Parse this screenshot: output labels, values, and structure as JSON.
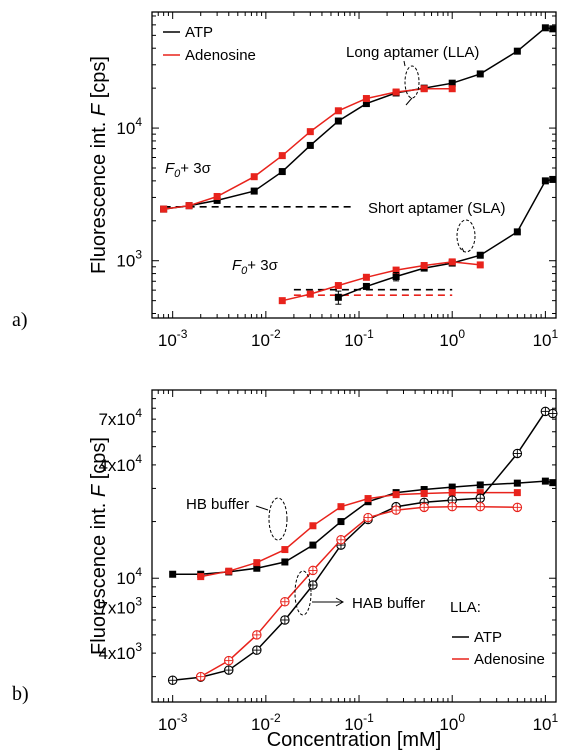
{
  "chart_data": [
    {
      "panel": "a)",
      "type": "line",
      "xscale": "log",
      "yscale": "log",
      "xlim": [
        0.0006,
        13
      ],
      "ylim": [
        370,
        75000
      ],
      "ylabel_prefix": "Fluorescence int. ",
      "ylabel_var": "F",
      "ylabel_unit": " [cps]",
      "xticks": [
        {
          "v": 0.001,
          "base": "10",
          "exp": "-3"
        },
        {
          "v": 0.01,
          "base": "10",
          "exp": "-2"
        },
        {
          "v": 0.1,
          "base": "10",
          "exp": "-1"
        },
        {
          "v": 1,
          "base": "10",
          "exp": "0"
        },
        {
          "v": 10,
          "base": "10",
          "exp": "1"
        }
      ],
      "yticks": [
        {
          "v": 1000,
          "base": "10",
          "exp": "3"
        },
        {
          "v": 10000,
          "base": "10",
          "exp": "4"
        }
      ],
      "legend": {
        "position": "top-left",
        "entries": [
          {
            "label": "ATP",
            "color": "#000000"
          },
          {
            "label": "Adenosine",
            "color": "#e8231c"
          }
        ]
      },
      "series": [
        {
          "name": "ATP",
          "group": "Long aptamer (LLA)",
          "color": "#000000",
          "marker": "square",
          "x": [
            0.0008,
            0.0015,
            0.003,
            0.0075,
            0.015,
            0.03,
            0.06,
            0.12,
            0.25,
            0.5,
            1,
            2,
            5,
            10,
            12
          ],
          "y": [
            2450,
            2600,
            2850,
            3350,
            4700,
            7400,
            11300,
            15300,
            18400,
            20000,
            21800,
            25600,
            38000,
            57000,
            56000
          ]
        },
        {
          "name": "Adenosine",
          "group": "Long aptamer (LLA)",
          "color": "#e8231c",
          "marker": "square",
          "x": [
            0.0008,
            0.0015,
            0.003,
            0.0075,
            0.015,
            0.03,
            0.06,
            0.12,
            0.25,
            0.5,
            1
          ],
          "y": [
            2450,
            2600,
            3050,
            4300,
            6200,
            9400,
            13500,
            16700,
            18700,
            19800,
            19800
          ]
        },
        {
          "name": "ATP",
          "group": "Short aptamer (SLA)",
          "color": "#000000",
          "marker": "square",
          "x": [
            0.06,
            0.12,
            0.25,
            0.5,
            1,
            2,
            5,
            10,
            12
          ],
          "y": [
            530,
            640,
            760,
            880,
            960,
            1100,
            1650,
            4000,
            4100
          ]
        },
        {
          "name": "Adenosine",
          "group": "Short aptamer (SLA)",
          "color": "#e8231c",
          "marker": "square",
          "x": [
            0.015,
            0.03,
            0.06,
            0.12,
            0.25,
            0.5,
            1,
            2
          ],
          "y": [
            500,
            560,
            650,
            750,
            850,
            920,
            980,
            930
          ]
        }
      ],
      "thresholds": [
        {
          "y": 2550,
          "x_from": 0.0008,
          "x_to": 0.09,
          "color": "#000000",
          "style": "dashed"
        },
        {
          "y": 605,
          "x_from": 0.02,
          "x_to": 1.0,
          "color": "#000000",
          "style": "dashed"
        },
        {
          "y": 550,
          "x_from": 0.02,
          "x_to": 1.0,
          "color": "#e8231c",
          "style": "dashed"
        }
      ],
      "annotations": {
        "long": "Long aptamer (LLA)",
        "short": "Short aptamer (SLA)",
        "f0_var": "F",
        "f0_sub": "0",
        "f0_rest": "+ 3σ"
      }
    },
    {
      "panel": "b)",
      "type": "line",
      "xscale": "log",
      "yscale": "log",
      "xlim": [
        0.0006,
        13
      ],
      "ylim": [
        2200,
        100000
      ],
      "ylabel_prefix": "Fluorescence int. ",
      "ylabel_var": "F",
      "ylabel_unit": " [cps]",
      "xlabel": "Concentration [mM]",
      "xticks": [
        {
          "v": 0.001,
          "base": "10",
          "exp": "-3"
        },
        {
          "v": 0.01,
          "base": "10",
          "exp": "-2"
        },
        {
          "v": 0.1,
          "base": "10",
          "exp": "-1"
        },
        {
          "v": 1,
          "base": "10",
          "exp": "0"
        },
        {
          "v": 10,
          "base": "10",
          "exp": "1"
        }
      ],
      "yticks": [
        {
          "v": 4000,
          "base": "4x10",
          "exp": "3"
        },
        {
          "v": 7000,
          "base": "7x10",
          "exp": "3"
        },
        {
          "v": 10000,
          "base": "10",
          "exp": "4"
        },
        {
          "v": 40000,
          "base": "4x10",
          "exp": "4"
        },
        {
          "v": 70000,
          "base": "7x10",
          "exp": "4"
        }
      ],
      "legend": {
        "position": "bottom-right",
        "title": "LLA:",
        "entries": [
          {
            "label": "ATP",
            "color": "#000000"
          },
          {
            "label": "Adenosine",
            "color": "#e8231c"
          }
        ]
      },
      "series": [
        {
          "name": "ATP",
          "group": "HB buffer",
          "color": "#000000",
          "marker": "square",
          "x": [
            0.001,
            0.002,
            0.004,
            0.008,
            0.016,
            0.032,
            0.064,
            0.125,
            0.25,
            0.5,
            1,
            2,
            5,
            10,
            12
          ],
          "y": [
            10500,
            10500,
            10800,
            11300,
            12200,
            15000,
            20000,
            25500,
            28500,
            29600,
            30500,
            31300,
            32000,
            32800,
            32200
          ]
        },
        {
          "name": "Adenosine",
          "group": "HB buffer",
          "color": "#e8231c",
          "marker": "square",
          "x": [
            0.002,
            0.004,
            0.008,
            0.016,
            0.032,
            0.064,
            0.125,
            0.25,
            0.5,
            1,
            2,
            5
          ],
          "y": [
            10200,
            10900,
            12100,
            14200,
            19000,
            24000,
            26500,
            27800,
            28200,
            28500,
            28500,
            28500
          ]
        },
        {
          "name": "ATP",
          "group": "HAB buffer",
          "color": "#000000",
          "marker": "circle-cross",
          "x": [
            0.001,
            0.002,
            0.004,
            0.008,
            0.016,
            0.032,
            0.064,
            0.125,
            0.25,
            0.5,
            1,
            2,
            5,
            10,
            12
          ],
          "y": [
            2870,
            2980,
            3250,
            4150,
            6000,
            9200,
            15000,
            20500,
            24000,
            25300,
            26000,
            26600,
            46000,
            77000,
            75000
          ]
        },
        {
          "name": "Adenosine",
          "group": "HAB buffer",
          "color": "#e8231c",
          "marker": "circle-cross",
          "x": [
            0.002,
            0.004,
            0.008,
            0.016,
            0.032,
            0.064,
            0.125,
            0.25,
            0.5,
            1,
            2,
            5
          ],
          "y": [
            3000,
            3650,
            5000,
            7500,
            11000,
            16000,
            21000,
            23000,
            23800,
            24000,
            24000,
            23800
          ]
        }
      ],
      "annotations": {
        "hb": "HB buffer",
        "hab": "HAB buffer"
      }
    }
  ]
}
